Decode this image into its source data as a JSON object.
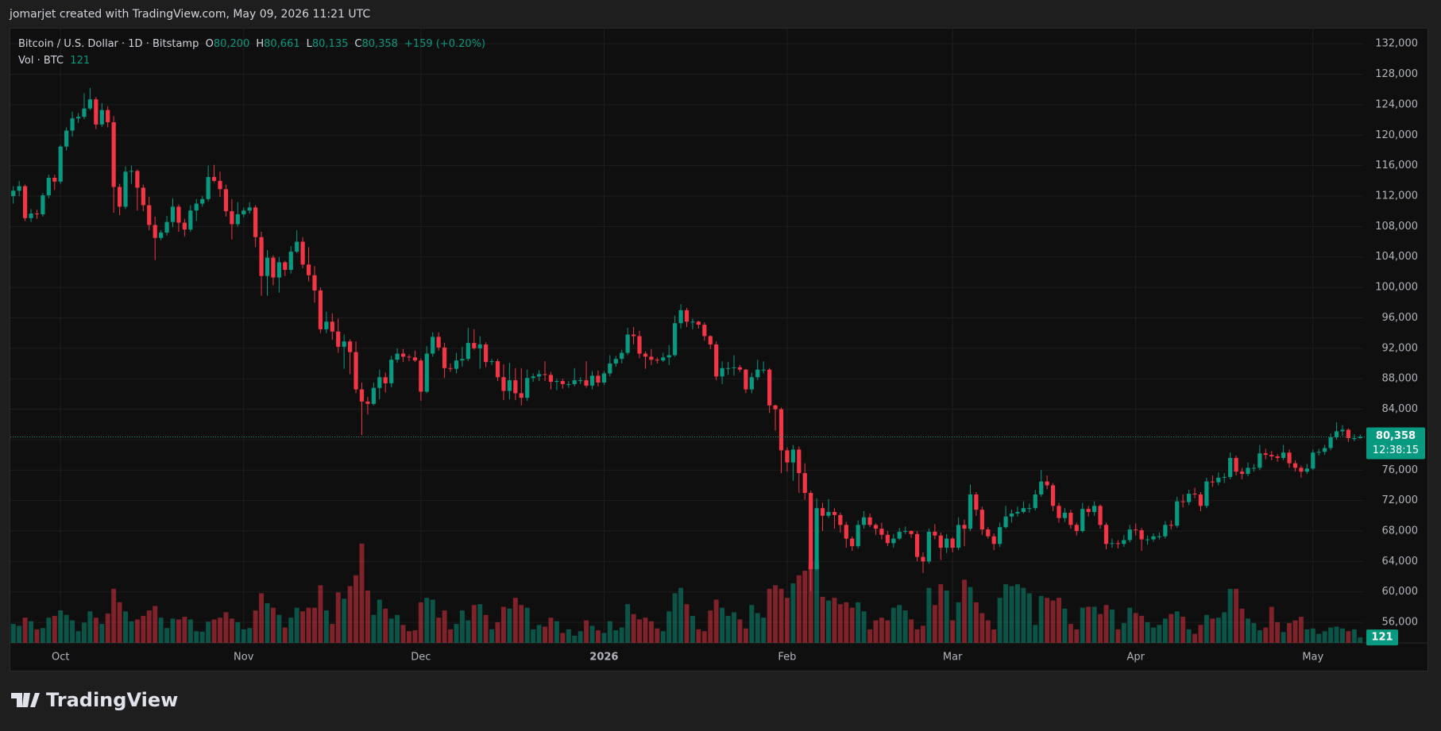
{
  "header": {
    "text": "jomarjet created with TradingView.com, May 09, 2026 11:21 UTC"
  },
  "footer": {
    "logo": "TradingView"
  },
  "chart_data": {
    "type": "candlestick",
    "legend": {
      "symbol": "Bitcoin / U.S. Dollar · 1D · Bitstamp",
      "change": "+159 (+0.20%)",
      "volume_title": "Vol · BTC",
      "keys": [
        "O",
        "H",
        "L",
        "C"
      ]
    },
    "last_labels": {
      "open": "80,200",
      "high": "80,661",
      "low": "80,135",
      "close": "80,358"
    },
    "countdown": "12:38:15",
    "colors": {
      "up": "#089981",
      "down": "#f23645"
    },
    "grid": true,
    "ylim": [
      53300,
      134000
    ],
    "yticks": [
      {
        "value": 56000,
        "label": "56,000"
      },
      {
        "value": 60000,
        "label": "60,000"
      },
      {
        "value": 64000,
        "label": "64,000"
      },
      {
        "value": 68000,
        "label": "68,000"
      },
      {
        "value": 72000,
        "label": "72,000"
      },
      {
        "value": 76000,
        "label": "76,000"
      },
      {
        "value": 80000,
        "label": "80,000"
      },
      {
        "value": 84000,
        "label": "84,000"
      },
      {
        "value": 88000,
        "label": "88,000"
      },
      {
        "value": 92000,
        "label": "92,000"
      },
      {
        "value": 96000,
        "label": "96,000"
      },
      {
        "value": 100000,
        "label": "100,000"
      },
      {
        "value": 104000,
        "label": "104,000"
      },
      {
        "value": 108000,
        "label": "108,000"
      },
      {
        "value": 112000,
        "label": "112,000"
      },
      {
        "value": 116000,
        "label": "116,000"
      },
      {
        "value": 120000,
        "label": "120,000"
      },
      {
        "value": 124000,
        "label": "124,000"
      },
      {
        "value": 128000,
        "label": "128,000"
      },
      {
        "value": 132000,
        "label": "132,000"
      }
    ],
    "categories": [
      null,
      null,
      null,
      null,
      null,
      null,
      null,
      null,
      "Oct",
      null,
      null,
      null,
      null,
      null,
      null,
      null,
      null,
      null,
      null,
      null,
      null,
      null,
      null,
      null,
      null,
      null,
      null,
      null,
      null,
      null,
      null,
      null,
      null,
      null,
      null,
      null,
      null,
      null,
      null,
      "Nov",
      null,
      null,
      null,
      null,
      null,
      null,
      null,
      null,
      null,
      null,
      null,
      null,
      null,
      null,
      null,
      null,
      null,
      null,
      null,
      null,
      null,
      null,
      null,
      null,
      null,
      null,
      null,
      null,
      null,
      "Dec",
      null,
      null,
      null,
      null,
      null,
      null,
      null,
      null,
      null,
      null,
      null,
      null,
      null,
      null,
      null,
      null,
      null,
      null,
      null,
      null,
      null,
      null,
      null,
      null,
      null,
      null,
      null,
      null,
      null,
      null,
      "2026",
      null,
      null,
      null,
      null,
      null,
      null,
      null,
      null,
      null,
      null,
      null,
      null,
      null,
      null,
      null,
      null,
      null,
      null,
      null,
      null,
      null,
      null,
      null,
      null,
      null,
      null,
      null,
      null,
      null,
      null,
      "Feb",
      null,
      null,
      null,
      null,
      null,
      null,
      null,
      null,
      null,
      null,
      null,
      null,
      null,
      null,
      null,
      null,
      null,
      null,
      null,
      null,
      null,
      null,
      null,
      null,
      null,
      null,
      null,
      "Mar",
      null,
      null,
      null,
      null,
      null,
      null,
      null,
      null,
      null,
      null,
      null,
      null,
      null,
      null,
      null,
      null,
      null,
      null,
      null,
      null,
      null,
      null,
      null,
      null,
      null,
      null,
      null,
      null,
      null,
      null,
      "Apr",
      null,
      null,
      null,
      null,
      null,
      null,
      null,
      null,
      null,
      null,
      null,
      null,
      null,
      null,
      null,
      null,
      null,
      null,
      null,
      null,
      null,
      null,
      null,
      null,
      null,
      null,
      null,
      null,
      null,
      "May",
      null,
      null,
      null,
      null,
      null,
      null,
      null,
      null
    ],
    "open": [
      112000,
      112700,
      113300,
      109100,
      109700,
      109600,
      112100,
      114400,
      113900,
      118500,
      120600,
      122200,
      122400,
      123500,
      124700,
      121400,
      123300,
      121700,
      113200,
      110600,
      115200,
      115300,
      113100,
      110800,
      108200,
      106500,
      107200,
      108600,
      110600,
      108500,
      107600,
      110100,
      111000,
      111600,
      114500,
      114000,
      112900,
      110000,
      108300,
      109600,
      110100,
      110500,
      106600,
      101500,
      103900,
      101300,
      103300,
      102300,
      104700,
      106000,
      103000,
      101600,
      99600,
      94500,
      95500,
      94200,
      92200,
      92900,
      91500,
      86600,
      85000,
      84700,
      86800,
      88200,
      87400,
      90500,
      91300,
      90900,
      90800,
      90400,
      86300,
      91300,
      93500,
      92100,
      89400,
      89300,
      90400,
      90600,
      92700,
      92000,
      92500,
      90200,
      90300,
      88200,
      86400,
      87800,
      86100,
      85500,
      88100,
      88300,
      88600,
      88500,
      87600,
      87700,
      87300,
      87300,
      87800,
      87800,
      87100,
      88400,
      87500,
      88700,
      90000,
      90600,
      91400,
      93800,
      93600,
      91300,
      90900,
      90500,
      90400,
      90800,
      91100,
      95300,
      97000,
      95500,
      95500,
      95100,
      93600,
      92500,
      88300,
      89400,
      89400,
      89500,
      89200,
      86600,
      88200,
      89200,
      89200,
      84500,
      84000,
      78600,
      77000,
      78700,
      75600,
      73000,
      63000,
      71000,
      70000,
      70500,
      70100,
      68800,
      67000,
      66000,
      68800,
      69800,
      68800,
      68300,
      67500,
      66400,
      67000,
      67900,
      68000,
      67600,
      64600,
      64000,
      67900,
      67400,
      65800,
      67000,
      65800,
      68800,
      68300,
      72800,
      70800,
      68200,
      67300,
      66300,
      68500,
      69900,
      70300,
      70500,
      71000,
      71000,
      72800,
      74500,
      74000,
      71300,
      69700,
      70400,
      68800,
      68000,
      70900,
      70500,
      71300,
      68800,
      66300,
      66400,
      66300,
      66800,
      68200,
      68100,
      66900,
      66900,
      67300,
      67300,
      68800,
      68700,
      71900,
      71800,
      72900,
      72800,
      71300,
      74500,
      74400,
      75000,
      75100,
      77600,
      75800,
      75500,
      76300,
      76300,
      78200,
      78000,
      77800,
      77600,
      78300,
      76900,
      76300,
      75800,
      76200,
      78300,
      78400,
      78900,
      80300,
      81100,
      81300,
      80200,
      80200
    ],
    "high": [
      113300,
      114000,
      113500,
      110300,
      110200,
      112400,
      114800,
      114800,
      118700,
      121000,
      123100,
      122900,
      125500,
      126200,
      125000,
      124200,
      123800,
      122500,
      113600,
      115900,
      116000,
      115500,
      113500,
      111900,
      109300,
      107500,
      109400,
      111700,
      110900,
      109000,
      110800,
      111600,
      112000,
      116000,
      116100,
      115200,
      113500,
      111600,
      111200,
      110500,
      111200,
      110800,
      107300,
      104900,
      104200,
      104000,
      103500,
      105400,
      107500,
      106600,
      105300,
      102800,
      100000,
      96800,
      96600,
      95900,
      93800,
      93200,
      92900,
      87500,
      85600,
      87500,
      89200,
      88800,
      91000,
      92000,
      91900,
      91200,
      91700,
      90700,
      92300,
      94100,
      94100,
      92700,
      90000,
      91400,
      92200,
      94700,
      94500,
      93600,
      92800,
      90600,
      90600,
      89900,
      90100,
      89400,
      89400,
      89200,
      88700,
      89100,
      90300,
      88900,
      88000,
      88000,
      87700,
      89400,
      88200,
      90300,
      89000,
      89100,
      89000,
      91100,
      91000,
      91800,
      94700,
      94800,
      94300,
      91600,
      91900,
      90800,
      91400,
      92400,
      96300,
      97800,
      97300,
      95900,
      95600,
      95400,
      93700,
      92900,
      90300,
      90200,
      91100,
      89800,
      89300,
      88800,
      90500,
      90300,
      89400,
      84600,
      84200,
      79000,
      79300,
      79100,
      76900,
      73300,
      72300,
      71700,
      72200,
      71000,
      70400,
      69200,
      67300,
      69400,
      70600,
      70300,
      69000,
      69100,
      68000,
      67600,
      68400,
      68600,
      68100,
      68000,
      65200,
      68300,
      68900,
      67800,
      67600,
      67200,
      69800,
      69500,
      74100,
      73100,
      71200,
      68500,
      67700,
      69100,
      71300,
      70800,
      71200,
      71900,
      71600,
      73400,
      76000,
      75300,
      74300,
      71700,
      71000,
      70800,
      69100,
      71700,
      71300,
      71900,
      71500,
      69100,
      67000,
      66800,
      67500,
      68800,
      69000,
      68400,
      67400,
      67700,
      67800,
      69300,
      69400,
      72500,
      72800,
      73400,
      73700,
      73100,
      75000,
      75300,
      75700,
      75600,
      78300,
      77900,
      76300,
      77000,
      76800,
      79300,
      78800,
      78500,
      78100,
      79300,
      78700,
      77300,
      76600,
      76800,
      78700,
      78800,
      79300,
      80800,
      82300,
      81900,
      81500,
      80700,
      80661
    ],
    "low": [
      111000,
      112000,
      108700,
      108600,
      109000,
      109300,
      111700,
      112800,
      113600,
      118000,
      119800,
      121600,
      122100,
      123300,
      120800,
      121100,
      121000,
      109800,
      109500,
      110300,
      113600,
      110100,
      110000,
      107500,
      103600,
      106200,
      106800,
      107900,
      107300,
      106700,
      107300,
      108700,
      110600,
      111300,
      113800,
      111900,
      109300,
      106300,
      108000,
      109200,
      109700,
      105300,
      98900,
      98900,
      100300,
      99300,
      101500,
      101800,
      104500,
      102500,
      100800,
      98000,
      94000,
      94000,
      93100,
      91400,
      89300,
      88600,
      86100,
      80600,
      83300,
      84500,
      85300,
      86200,
      86900,
      90100,
      90200,
      90300,
      90200,
      85100,
      86100,
      90900,
      91700,
      88100,
      88900,
      88700,
      89600,
      90300,
      91800,
      89300,
      89500,
      89800,
      87700,
      85200,
      85300,
      85200,
      84500,
      85100,
      87600,
      87700,
      87700,
      86600,
      86500,
      86700,
      86800,
      87000,
      87300,
      86800,
      86600,
      87000,
      87200,
      88300,
      89600,
      90000,
      91100,
      92500,
      90700,
      89300,
      89800,
      90000,
      90200,
      89800,
      90900,
      94600,
      94800,
      94500,
      94600,
      93000,
      91900,
      87800,
      87300,
      88500,
      88400,
      88900,
      86100,
      86100,
      87800,
      88700,
      83500,
      81200,
      75600,
      75800,
      74600,
      73000,
      72100,
      60100,
      62800,
      68000,
      69700,
      68300,
      67800,
      65800,
      65400,
      65700,
      68300,
      68500,
      67500,
      66900,
      66000,
      65800,
      66800,
      67600,
      67100,
      64000,
      62500,
      63700,
      66900,
      64200,
      65100,
      65200,
      65500,
      66000,
      68000,
      70000,
      67500,
      67000,
      65500,
      65900,
      68300,
      69100,
      69900,
      70300,
      70400,
      70700,
      72500,
      73500,
      70600,
      69100,
      69200,
      68300,
      67400,
      67800,
      69900,
      70000,
      68300,
      65600,
      65800,
      65700,
      65900,
      66500,
      67400,
      65400,
      66200,
      66600,
      66900,
      67000,
      68200,
      68400,
      71100,
      71400,
      72300,
      70600,
      71000,
      73800,
      74000,
      74300,
      74800,
      75300,
      74800,
      75200,
      75800,
      76000,
      77400,
      77300,
      77100,
      77300,
      76300,
      75800,
      75000,
      75500,
      76000,
      77900,
      78000,
      78600,
      80000,
      80500,
      79700,
      79800,
      80135
    ],
    "close": [
      112700,
      113300,
      109100,
      109700,
      109600,
      112100,
      114400,
      113900,
      118500,
      120600,
      122200,
      122400,
      123500,
      124700,
      121400,
      123300,
      121700,
      113200,
      110600,
      115200,
      115300,
      113100,
      110800,
      108200,
      106500,
      107200,
      108600,
      110600,
      108500,
      107600,
      110100,
      111000,
      111600,
      114500,
      114000,
      112900,
      110000,
      108300,
      109600,
      110100,
      110500,
      106600,
      101500,
      103900,
      101300,
      103300,
      102300,
      104700,
      106000,
      103000,
      101600,
      99600,
      94500,
      95500,
      94200,
      92200,
      92900,
      91500,
      86600,
      85000,
      84700,
      86800,
      88200,
      87400,
      90500,
      91300,
      90900,
      90800,
      90400,
      86300,
      91300,
      93500,
      92100,
      89400,
      89300,
      90400,
      90600,
      92700,
      92000,
      92500,
      90200,
      90300,
      88200,
      86400,
      87800,
      86100,
      85500,
      88100,
      88300,
      88600,
      88500,
      87600,
      87700,
      87300,
      87300,
      87800,
      87800,
      87100,
      88400,
      87500,
      88700,
      90000,
      90600,
      91400,
      93800,
      93600,
      91300,
      90900,
      90500,
      90400,
      90800,
      91100,
      95300,
      97000,
      95500,
      95500,
      95100,
      93600,
      92500,
      88300,
      89400,
      89400,
      89500,
      89200,
      86600,
      88200,
      89200,
      89200,
      84500,
      84000,
      78600,
      77000,
      78700,
      75600,
      73000,
      63000,
      71000,
      70000,
      70500,
      70100,
      68800,
      67000,
      66000,
      68800,
      69800,
      68800,
      68300,
      67500,
      66400,
      67000,
      67900,
      68000,
      67600,
      64600,
      64000,
      67900,
      67400,
      65800,
      67000,
      65800,
      68800,
      68300,
      72800,
      70800,
      68200,
      67300,
      66300,
      68500,
      69900,
      70300,
      70500,
      71000,
      71000,
      72800,
      74500,
      74000,
      71300,
      69700,
      70400,
      68800,
      68000,
      70900,
      70500,
      71300,
      68800,
      66300,
      66400,
      66300,
      66800,
      68200,
      68100,
      66900,
      66900,
      67300,
      67300,
      68800,
      68700,
      71900,
      71800,
      72900,
      72800,
      71300,
      74500,
      74400,
      75000,
      75100,
      77600,
      75800,
      75500,
      76300,
      76300,
      78200,
      78000,
      77800,
      77600,
      78300,
      76900,
      76300,
      75800,
      76200,
      78300,
      78400,
      78900,
      80300,
      81100,
      81300,
      80200,
      80200,
      80358
    ],
    "volume": [
      420,
      380,
      560,
      480,
      300,
      330,
      560,
      600,
      720,
      620,
      500,
      260,
      450,
      700,
      560,
      420,
      650,
      1200,
      900,
      700,
      480,
      520,
      600,
      720,
      820,
      560,
      330,
      540,
      520,
      580,
      520,
      260,
      250,
      470,
      520,
      560,
      680,
      540,
      460,
      300,
      330,
      720,
      1100,
      880,
      780,
      620,
      340,
      560,
      780,
      700,
      780,
      780,
      1280,
      720,
      420,
      1120,
      980,
      1260,
      1500,
      2200,
      1160,
      620,
      960,
      760,
      540,
      620,
      400,
      260,
      280,
      900,
      1000,
      960,
      560,
      720,
      300,
      420,
      720,
      500,
      840,
      860,
      620,
      300,
      460,
      800,
      760,
      1000,
      840,
      780,
      300,
      400,
      360,
      560,
      480,
      220,
      300,
      160,
      260,
      500,
      380,
      280,
      220,
      480,
      280,
      340,
      860,
      640,
      520,
      560,
      480,
      320,
      260,
      700,
      1100,
      1220,
      860,
      600,
      300,
      260,
      720,
      960,
      780,
      600,
      680,
      520,
      320,
      840,
      660,
      560,
      1200,
      1280,
      1200,
      1000,
      1320,
      1500,
      1600,
      1800,
      1800,
      1020,
      940,
      1000,
      860,
      900,
      780,
      900,
      700,
      300,
      500,
      560,
      500,
      780,
      840,
      720,
      520,
      300,
      380,
      1220,
      840,
      1300,
      1160,
      500,
      900,
      1400,
      1240,
      900,
      660,
      500,
      300,
      1000,
      1300,
      1260,
      1300,
      1220,
      1100,
      400,
      1040,
      1000,
      940,
      1000,
      760,
      420,
      300,
      780,
      800,
      800,
      640,
      840,
      740,
      300,
      440,
      780,
      660,
      600,
      460,
      340,
      400,
      540,
      640,
      700,
      580,
      300,
      200,
      400,
      620,
      540,
      560,
      680,
      1200,
      1200,
      760,
      540,
      440,
      280,
      340,
      800,
      460,
      240,
      440,
      500,
      580,
      300,
      320,
      200,
      260,
      340,
      360,
      320,
      260,
      300,
      121
    ]
  }
}
